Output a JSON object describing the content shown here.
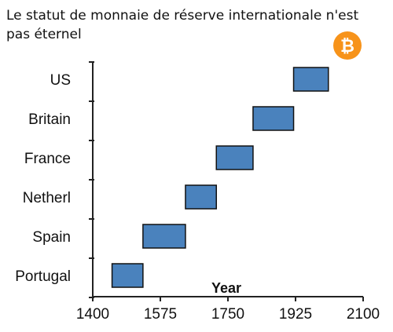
{
  "title": "Le statut de monnaie de réserve internationale n'est pas éternel",
  "logo": {
    "icon": "bitcoin-icon",
    "color": "#f7931a",
    "glyph": "₿"
  },
  "chart_data": {
    "type": "bar",
    "orientation": "horizontal-range",
    "xlabel": "Year",
    "ylabel": "",
    "xlim": [
      1400,
      2100
    ],
    "xticks": [
      1400,
      1575,
      1750,
      1925,
      2100
    ],
    "grid": false,
    "bar_color": "#4a82bd",
    "bar_edge_color": "#111111",
    "categories": [
      "US",
      "Britain",
      "France",
      "Netherl",
      "Spain",
      "Portugal"
    ],
    "series": [
      {
        "values": [
          {
            "category": "US",
            "start": 1920,
            "end": 2010
          },
          {
            "category": "Britain",
            "start": 1815,
            "end": 1920
          },
          {
            "category": "France",
            "start": 1720,
            "end": 1815
          },
          {
            "category": "Netherl",
            "start": 1640,
            "end": 1720
          },
          {
            "category": "Spain",
            "start": 1530,
            "end": 1640
          },
          {
            "category": "Portugal",
            "start": 1450,
            "end": 1530
          }
        ]
      }
    ]
  }
}
